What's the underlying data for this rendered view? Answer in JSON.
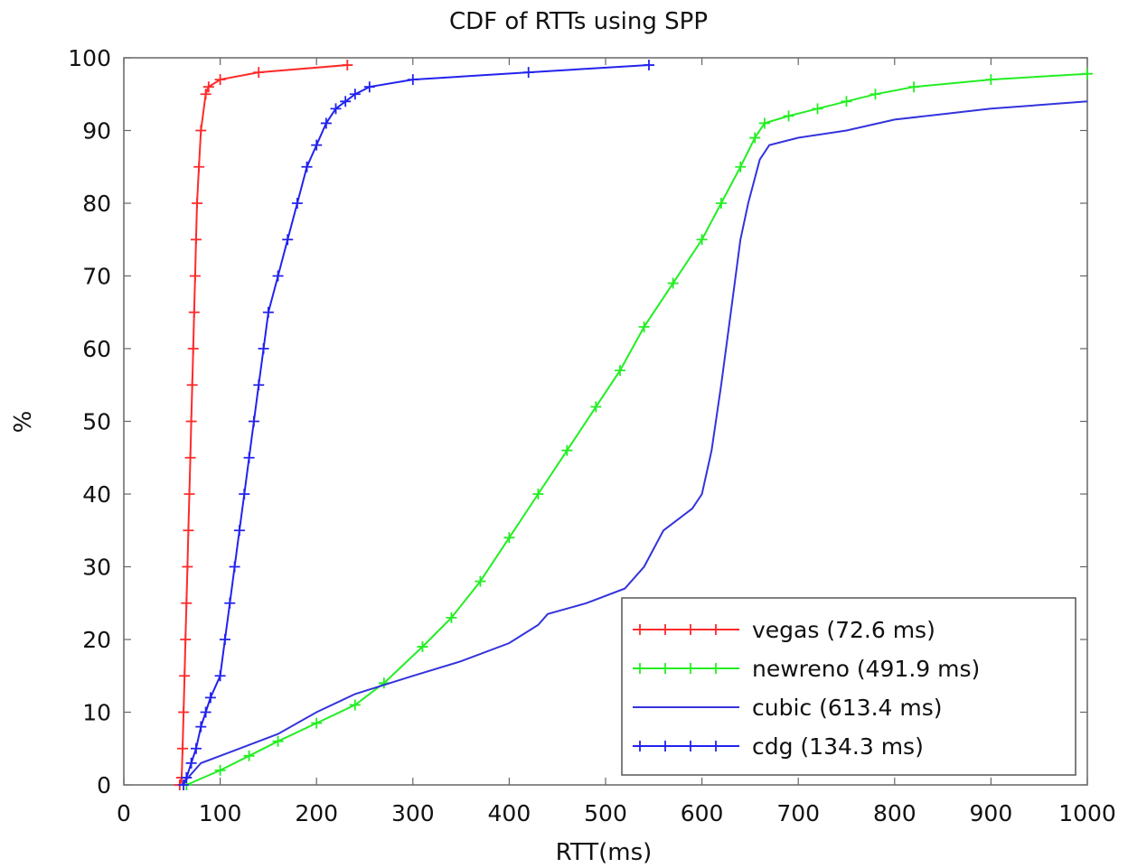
{
  "chart_data": {
    "type": "line",
    "title": "CDF of RTTs using SPP",
    "xlabel": "RTT(ms)",
    "ylabel": "%",
    "xlim": [
      0,
      1000
    ],
    "ylim": [
      0,
      100
    ],
    "x_ticks": [
      "0",
      "100",
      "200",
      "300",
      "400",
      "500",
      "600",
      "700",
      "800",
      "900",
      "1000"
    ],
    "y_ticks": [
      "0",
      "10",
      "20",
      "30",
      "40",
      "50",
      "60",
      "70",
      "80",
      "90",
      "100"
    ],
    "x_tick_values": [
      0,
      100,
      200,
      300,
      400,
      500,
      600,
      700,
      800,
      900,
      1000
    ],
    "y_tick_values": [
      0,
      10,
      20,
      30,
      40,
      50,
      60,
      70,
      80,
      90,
      100
    ],
    "grid": false,
    "legend_position": "bottom-right",
    "series": [
      {
        "name": "vegas (72.6 ms)",
        "color": "#ff2a2a",
        "marker": "plus",
        "points": [
          [
            58,
            0
          ],
          [
            60,
            1
          ],
          [
            61,
            5
          ],
          [
            62,
            10
          ],
          [
            63,
            15
          ],
          [
            64,
            20
          ],
          [
            65,
            25
          ],
          [
            66,
            30
          ],
          [
            67,
            35
          ],
          [
            68,
            40
          ],
          [
            69,
            45
          ],
          [
            70,
            50
          ],
          [
            71,
            55
          ],
          [
            72,
            60
          ],
          [
            73,
            65
          ],
          [
            74,
            70
          ],
          [
            75,
            75
          ],
          [
            76,
            80
          ],
          [
            78,
            85
          ],
          [
            80,
            90
          ],
          [
            85,
            95
          ],
          [
            88,
            96
          ],
          [
            100,
            97
          ],
          [
            140,
            98
          ],
          [
            232,
            99
          ]
        ]
      },
      {
        "name": "newreno (491.9 ms)",
        "color": "#22ee22",
        "marker": "plus",
        "points": [
          [
            65,
            0
          ],
          [
            100,
            2
          ],
          [
            130,
            4
          ],
          [
            160,
            6
          ],
          [
            200,
            8.5
          ],
          [
            240,
            11
          ],
          [
            270,
            14
          ],
          [
            310,
            19
          ],
          [
            340,
            23
          ],
          [
            370,
            28
          ],
          [
            400,
            34
          ],
          [
            430,
            40
          ],
          [
            460,
            46
          ],
          [
            490,
            52
          ],
          [
            515,
            57
          ],
          [
            540,
            63
          ],
          [
            570,
            69
          ],
          [
            600,
            75
          ],
          [
            620,
            80
          ],
          [
            640,
            85
          ],
          [
            655,
            89
          ],
          [
            665,
            91
          ],
          [
            690,
            92
          ],
          [
            720,
            93
          ],
          [
            750,
            94
          ],
          [
            780,
            95
          ],
          [
            820,
            96
          ],
          [
            900,
            97
          ],
          [
            1000,
            97.8
          ]
        ]
      },
      {
        "name": "cubic (613.4 ms)",
        "color": "#3333dd",
        "marker": "none",
        "points": [
          [
            60,
            0
          ],
          [
            80,
            3
          ],
          [
            120,
            5
          ],
          [
            160,
            7
          ],
          [
            200,
            10
          ],
          [
            240,
            12.5
          ],
          [
            300,
            15
          ],
          [
            350,
            17
          ],
          [
            400,
            19.5
          ],
          [
            430,
            22
          ],
          [
            440,
            23.5
          ],
          [
            480,
            25
          ],
          [
            520,
            27
          ],
          [
            540,
            30
          ],
          [
            560,
            35
          ],
          [
            590,
            38
          ],
          [
            600,
            40
          ],
          [
            610,
            46
          ],
          [
            620,
            55
          ],
          [
            630,
            65
          ],
          [
            640,
            75
          ],
          [
            648,
            80
          ],
          [
            660,
            86
          ],
          [
            670,
            88
          ],
          [
            700,
            89
          ],
          [
            750,
            90
          ],
          [
            800,
            91.5
          ],
          [
            900,
            93
          ],
          [
            1000,
            94
          ]
        ]
      },
      {
        "name": "cdg (134.3 ms)",
        "color": "#2222ee",
        "marker": "plus",
        "points": [
          [
            62,
            0
          ],
          [
            65,
            1
          ],
          [
            70,
            3
          ],
          [
            75,
            5
          ],
          [
            80,
            8
          ],
          [
            85,
            10
          ],
          [
            90,
            12
          ],
          [
            100,
            15
          ],
          [
            105,
            20
          ],
          [
            110,
            25
          ],
          [
            115,
            30
          ],
          [
            120,
            35
          ],
          [
            125,
            40
          ],
          [
            130,
            45
          ],
          [
            135,
            50
          ],
          [
            140,
            55
          ],
          [
            145,
            60
          ],
          [
            150,
            65
          ],
          [
            160,
            70
          ],
          [
            170,
            75
          ],
          [
            180,
            80
          ],
          [
            190,
            85
          ],
          [
            200,
            88
          ],
          [
            210,
            91
          ],
          [
            220,
            93
          ],
          [
            230,
            94
          ],
          [
            240,
            95
          ],
          [
            255,
            96
          ],
          [
            300,
            97
          ],
          [
            420,
            98
          ],
          [
            545,
            99
          ]
        ]
      }
    ]
  }
}
